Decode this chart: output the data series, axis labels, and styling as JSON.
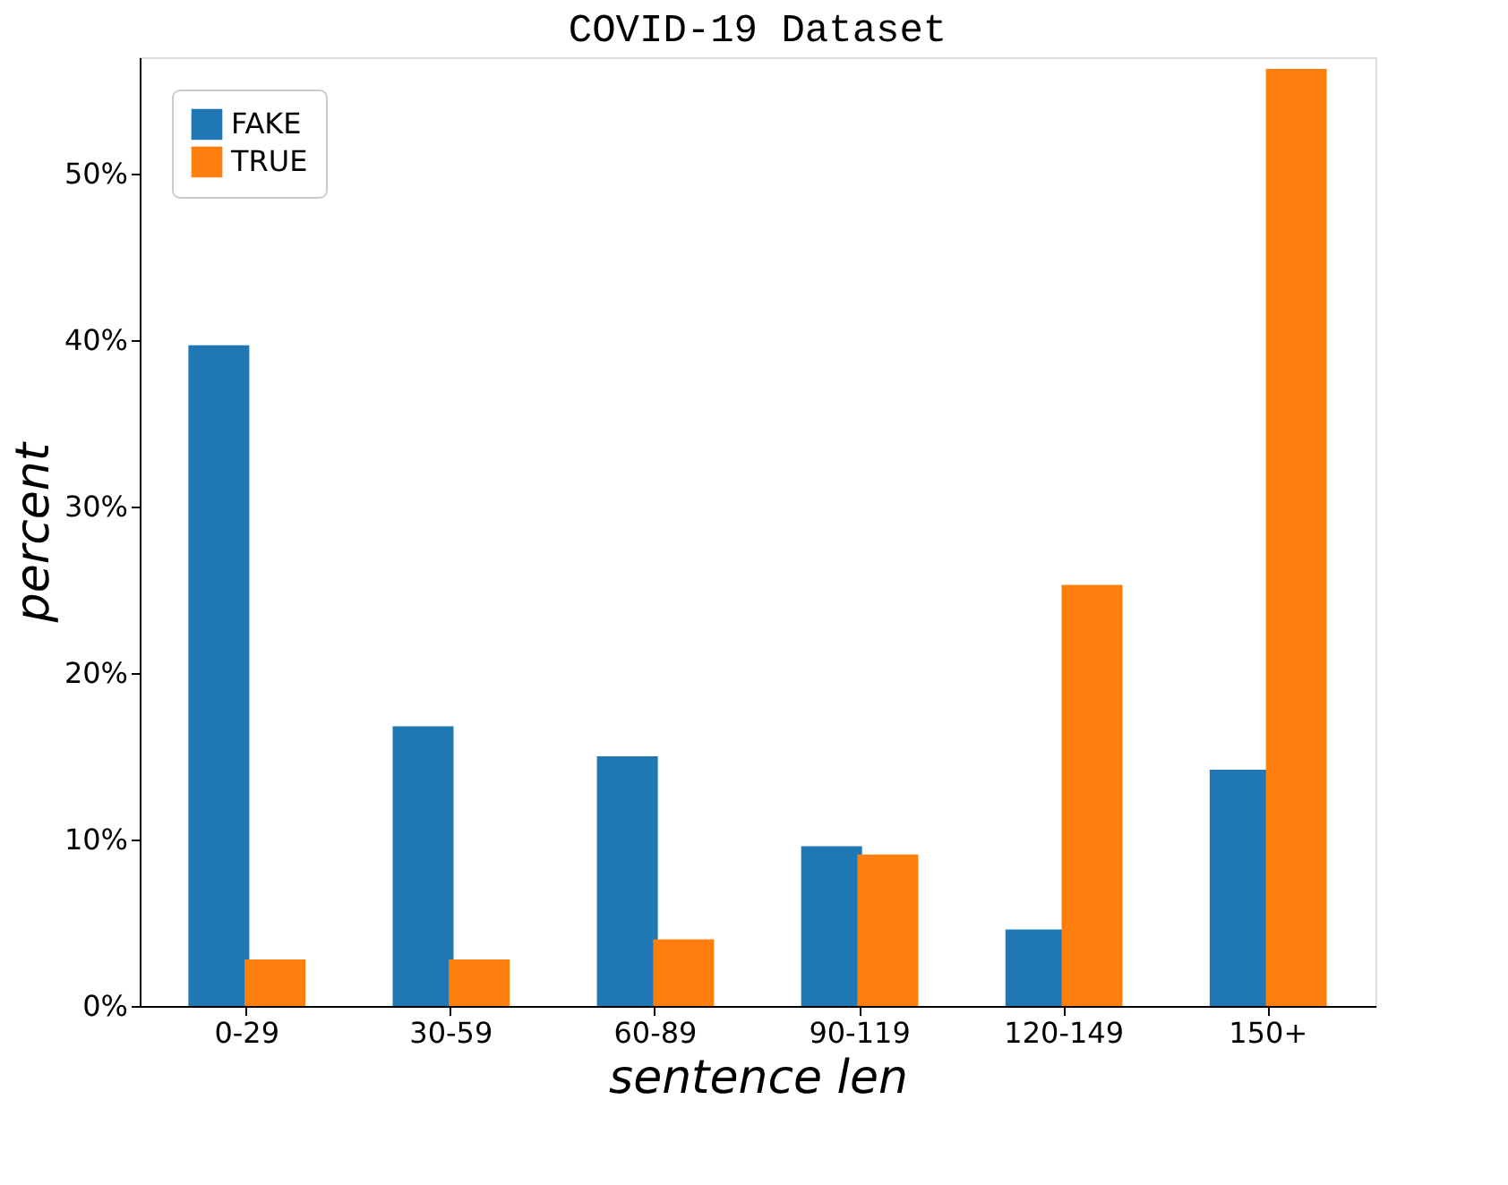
{
  "chart_data": {
    "type": "bar",
    "title": "COVID-19 Dataset",
    "xlabel": "sentence len",
    "ylabel": "percent",
    "categories": [
      "0-29",
      "30-59",
      "60-89",
      "90-119",
      "120-149",
      "150+"
    ],
    "series": [
      {
        "name": "FAKE",
        "color": "#1f77b4",
        "values": [
          39.7,
          16.8,
          15.0,
          9.6,
          4.6,
          14.2
        ]
      },
      {
        "name": "TRUE",
        "color": "#ff7f0e",
        "values": [
          2.8,
          2.8,
          4.0,
          9.1,
          25.3,
          56.3
        ]
      }
    ],
    "ylim": [
      0,
      57
    ],
    "yticks": [
      {
        "value": 0,
        "label": "0%"
      },
      {
        "value": 10,
        "label": "10%"
      },
      {
        "value": 20,
        "label": "20%"
      },
      {
        "value": 30,
        "label": "30%"
      },
      {
        "value": 40,
        "label": "40%"
      },
      {
        "value": 50,
        "label": "50%"
      }
    ],
    "grid": false,
    "legend": "top left"
  }
}
